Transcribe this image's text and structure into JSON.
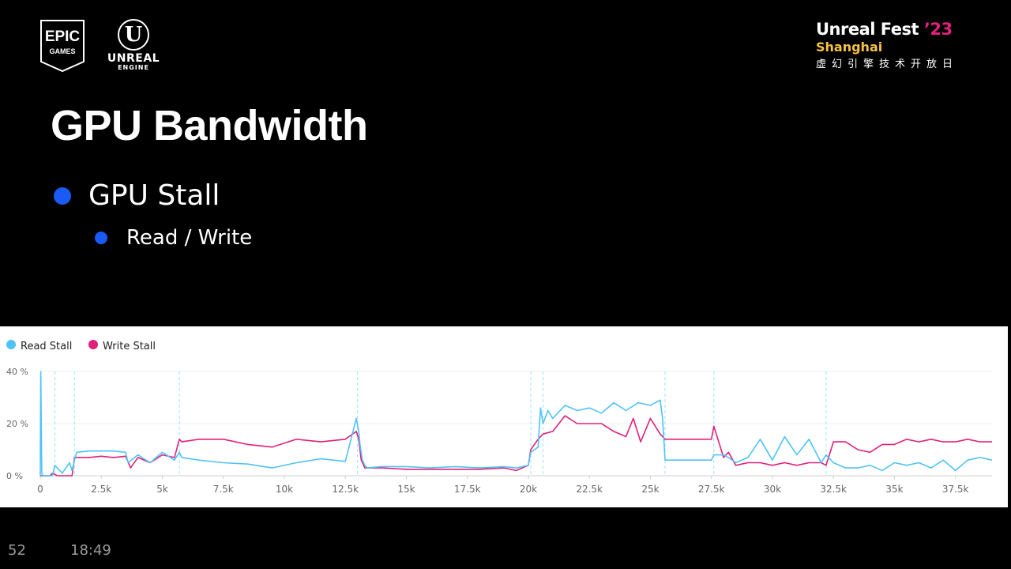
{
  "logos": {
    "epic": {
      "line1": "EPIC",
      "line2": "GAMES"
    },
    "unreal": {
      "mark": "U",
      "word": "UNREAL",
      "sub": "ENGINE"
    }
  },
  "event": {
    "title": "Unreal Fest",
    "year": "’23",
    "city": "Shanghai",
    "subtitle_cn": "虚幻引擎技术开放日",
    "year_color": "#e0207a",
    "city_color": "#f6c343"
  },
  "slide": {
    "title": "GPU Bandwidth",
    "bullet1": "GPU Stall",
    "bullet2": "Read / Write",
    "bullet_color": "#1a5bf5"
  },
  "footer": {
    "slide_number": "52",
    "time": "18:49"
  },
  "chart_data": {
    "type": "line",
    "xlim": [
      0,
      39000
    ],
    "ylim": [
      0,
      40
    ],
    "x_ticks": [
      0,
      2500,
      5000,
      7500,
      10000,
      12500,
      15000,
      17500,
      20000,
      22500,
      25000,
      27500,
      30000,
      32500,
      35000,
      37500
    ],
    "x_tick_labels": [
      "0",
      "2.5k",
      "5k",
      "7.5k",
      "10k",
      "12.5k",
      "15k",
      "17.5k",
      "20k",
      "22.5k",
      "25k",
      "27.5k",
      "30k",
      "32.5k",
      "35k",
      "37.5k"
    ],
    "y_ticks": [
      0,
      20,
      40
    ],
    "y_tick_labels": [
      "0 %",
      "20 %",
      "40 %"
    ],
    "legend_position": "top-left",
    "event_markers": [
      600,
      1400,
      5700,
      13000,
      20100,
      20600,
      25600,
      27600,
      32200
    ],
    "series": [
      {
        "name": "Read Stall",
        "color": "#4fc3f7",
        "x": [
          0,
          20,
          60,
          100,
          500,
          600,
          900,
          1200,
          1300,
          1400,
          1500,
          2000,
          2500,
          3000,
          3500,
          3600,
          4000,
          4500,
          5000,
          5500,
          5700,
          5800,
          6500,
          7500,
          8500,
          9500,
          10500,
          11500,
          12500,
          12950,
          13050,
          13100,
          13200,
          13300,
          13400,
          14000,
          15000,
          16000,
          17000,
          18000,
          19000,
          19500,
          20000,
          20100,
          20400,
          20500,
          20600,
          20800,
          21000,
          21500,
          22000,
          22500,
          23000,
          23500,
          24000,
          24500,
          25000,
          25400,
          25500,
          25600,
          26000,
          26500,
          27000,
          27500,
          27600,
          28000,
          28200,
          28500,
          29000,
          29500,
          30000,
          30500,
          31000,
          31500,
          32000,
          32200,
          32500,
          33000,
          33500,
          34000,
          34500,
          35000,
          35500,
          36000,
          36500,
          37000,
          37500,
          38000,
          38500,
          39000
        ],
        "y": [
          0,
          40,
          1,
          0,
          0,
          4,
          1,
          5,
          2,
          6,
          9,
          9.5,
          9.5,
          9.5,
          9,
          5,
          8,
          5,
          9,
          6,
          9,
          7,
          6,
          5,
          4.5,
          3,
          5,
          6.5,
          5.5,
          22,
          17,
          12,
          6,
          4,
          3,
          3.5,
          3.5,
          3,
          3.5,
          3,
          3.5,
          3,
          4,
          9,
          11,
          26,
          20,
          25,
          22,
          27,
          25,
          26,
          24,
          28,
          25,
          28,
          27,
          29,
          22,
          6,
          6,
          6,
          6,
          6,
          8,
          8,
          7,
          5,
          7,
          14,
          6,
          15,
          8,
          14,
          5,
          8,
          5,
          3,
          3,
          4,
          2,
          5,
          4,
          5,
          3,
          6,
          2,
          6,
          7,
          6
        ]
      },
      {
        "name": "Write Stall",
        "color": "#e0207a",
        "x": [
          0,
          400,
          500,
          700,
          1000,
          1300,
          1400,
          1500,
          2000,
          2500,
          3000,
          3500,
          3700,
          4000,
          4500,
          5000,
          5500,
          5700,
          5800,
          6500,
          7500,
          8500,
          9500,
          10500,
          11500,
          12500,
          12950,
          13050,
          13150,
          13300,
          14000,
          15000,
          16000,
          17000,
          18000,
          19000,
          19500,
          20000,
          20100,
          20400,
          20600,
          21000,
          21500,
          22000,
          22500,
          23000,
          23500,
          24000,
          24300,
          24600,
          25000,
          25400,
          25600,
          26000,
          26500,
          27000,
          27500,
          27600,
          28000,
          28200,
          28500,
          29000,
          29500,
          30000,
          30500,
          31000,
          31500,
          32000,
          32200,
          32500,
          33000,
          33500,
          34000,
          34500,
          35000,
          35500,
          36000,
          36500,
          37000,
          37500,
          38000,
          38500,
          39000
        ],
        "y": [
          0,
          0,
          1,
          0,
          0,
          0,
          7,
          7,
          7,
          7.5,
          7,
          7.5,
          3,
          7,
          5,
          8,
          7,
          14,
          13,
          14,
          14,
          12,
          11,
          14,
          13,
          14,
          17,
          14,
          6,
          3,
          3,
          2.5,
          2.5,
          2.5,
          2.5,
          3,
          2,
          4,
          10,
          14,
          16,
          17,
          23,
          20,
          20,
          20,
          17,
          15,
          22,
          13,
          22,
          16,
          14,
          14,
          14,
          14,
          14,
          19,
          7,
          9,
          4,
          5,
          5,
          4,
          5,
          4,
          5,
          5,
          4,
          13,
          13,
          10,
          9,
          12,
          12,
          14,
          13,
          14,
          13,
          13,
          14,
          13,
          13
        ]
      }
    ]
  }
}
